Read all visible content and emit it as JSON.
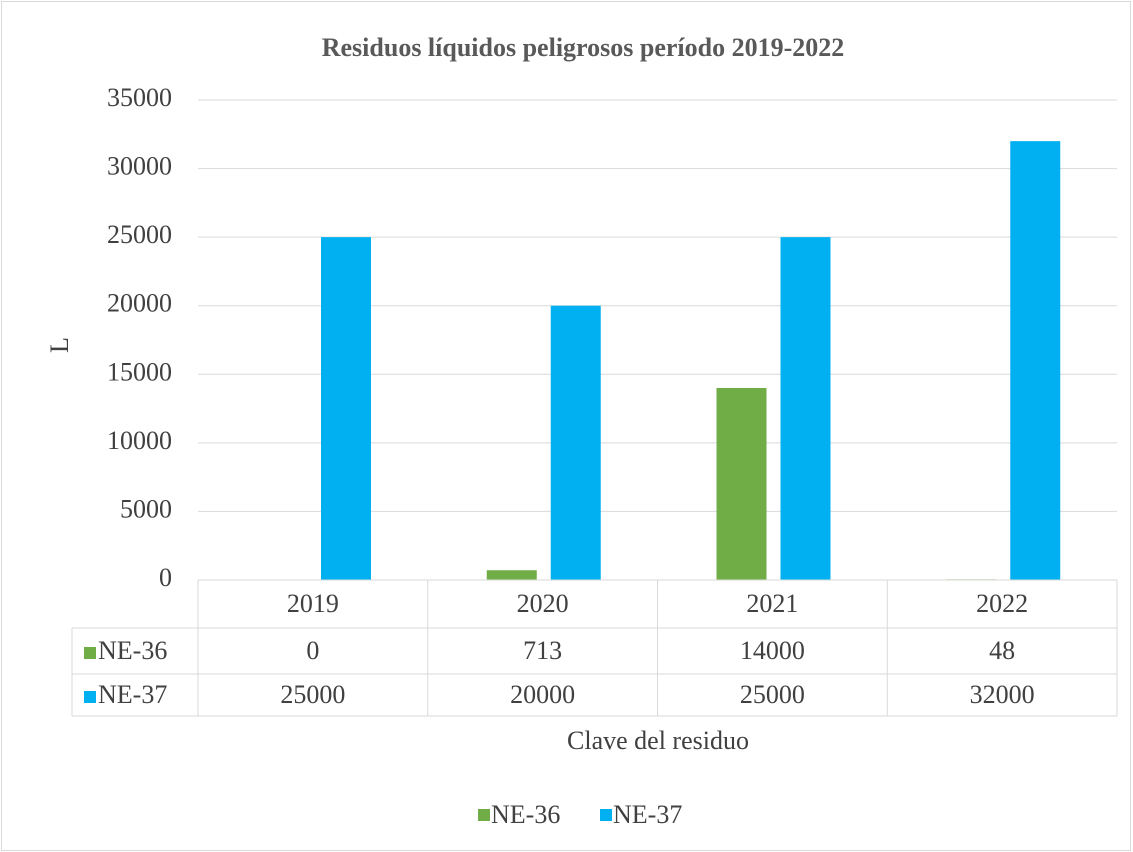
{
  "chart_data": {
    "type": "bar",
    "title": "Residuos líquidos peligrosos período 2019-2022",
    "y_label": "L",
    "x_label": "Clave del residuo",
    "categories": [
      "2019",
      "2020",
      "2021",
      "2022"
    ],
    "series": [
      {
        "name": "NE-36",
        "color": "#70ad47",
        "values": [
          0,
          713,
          14000,
          48
        ]
      },
      {
        "name": "NE-37",
        "color": "#00b0f0",
        "values": [
          25000,
          20000,
          25000,
          32000
        ]
      }
    ],
    "ylim": [
      0,
      35000
    ],
    "yticks": [
      0,
      5000,
      10000,
      15000,
      20000,
      25000,
      30000,
      35000
    ],
    "grid": true,
    "legend": "bottom",
    "data_table": true
  }
}
